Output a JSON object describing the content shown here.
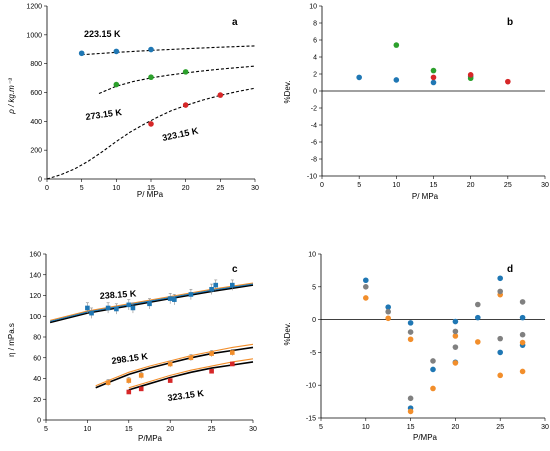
{
  "chart_data": [
    {
      "id": "a",
      "type": "scatter",
      "panel_label": "a",
      "xlabel": "P/ MPa",
      "ylabel": "ρ / kg.m⁻³",
      "xlim": [
        0,
        30
      ],
      "ylim": [
        0,
        1200
      ],
      "xticks": [
        0,
        5,
        10,
        15,
        20,
        25,
        30
      ],
      "yticks": [
        0,
        200,
        400,
        600,
        800,
        1000,
        1200
      ],
      "grid": false,
      "series": [
        {
          "color": "#1f77b4",
          "points": [
            [
              5,
              872
            ],
            [
              10,
              885
            ],
            [
              15,
              898
            ]
          ]
        },
        {
          "color": "#2ca02c",
          "points": [
            [
              10,
              655
            ],
            [
              15,
              706
            ],
            [
              20,
              743
            ]
          ]
        },
        {
          "color": "#d62728",
          "points": [
            [
              15,
              382
            ],
            [
              20,
              513
            ],
            [
              25,
              582
            ]
          ]
        }
      ],
      "curves": [
        {
          "label": "223.15 K",
          "points": [
            [
              5,
              862
            ],
            [
              10,
              878
            ],
            [
              15,
              892
            ],
            [
              20,
              904
            ],
            [
              25,
              914
            ],
            [
              30,
              923
            ]
          ]
        },
        {
          "label": "273.15 K",
          "points": [
            [
              7.5,
              593
            ],
            [
              10,
              644
            ],
            [
              12.5,
              677
            ],
            [
              15,
              701
            ],
            [
              17.5,
              720
            ],
            [
              20,
              736
            ],
            [
              22.5,
              750
            ],
            [
              25,
              762
            ],
            [
              27.5,
              773
            ],
            [
              30,
              783
            ]
          ]
        },
        {
          "label": "323.15 K",
          "points": [
            [
              0,
              0
            ],
            [
              2,
              30
            ],
            [
              4,
              70
            ],
            [
              6,
              125
            ],
            [
              8,
              190
            ],
            [
              10,
              260
            ],
            [
              12,
              325
            ],
            [
              14,
              380
            ],
            [
              16,
              430
            ],
            [
              18,
              475
            ],
            [
              20,
              510
            ],
            [
              22.5,
              548
            ],
            [
              25,
              580
            ],
            [
              27.5,
              607
            ],
            [
              30,
              630
            ]
          ]
        }
      ]
    },
    {
      "id": "b",
      "type": "scatter",
      "panel_label": "b",
      "xlabel": "P/ MPa",
      "ylabel": "%Dev.",
      "xlim": [
        0,
        30
      ],
      "ylim": [
        -10,
        10
      ],
      "xticks": [
        0,
        5,
        10,
        15,
        20,
        25,
        30
      ],
      "yticks": [
        -10,
        -8,
        -6,
        -4,
        -2,
        0,
        2,
        4,
        6,
        8,
        10
      ],
      "zero_line": true,
      "grid": false,
      "series": [
        {
          "color": "#1f77b4",
          "points": [
            [
              5,
              1.6
            ],
            [
              10,
              1.3
            ],
            [
              15,
              1.0
            ],
            [
              20,
              1.7
            ]
          ]
        },
        {
          "color": "#2ca02c",
          "points": [
            [
              10,
              5.4
            ],
            [
              15,
              2.4
            ],
            [
              20,
              1.5
            ]
          ]
        },
        {
          "color": "#d62728",
          "points": [
            [
              15,
              1.6
            ],
            [
              20,
              1.9
            ],
            [
              25,
              1.1
            ]
          ]
        }
      ]
    },
    {
      "id": "c",
      "type": "scatter",
      "panel_label": "c",
      "xlabel": "P/MPa",
      "ylabel": "η / mPa.s",
      "xlim": [
        5,
        30
      ],
      "ylim": [
        0,
        160
      ],
      "xticks": [
        5,
        10,
        15,
        20,
        25,
        30
      ],
      "yticks": [
        0,
        20,
        40,
        60,
        80,
        100,
        120,
        140,
        160
      ],
      "grid": false,
      "series": [
        {
          "color": "#1f77b4",
          "points": [
            [
              10,
              108
            ],
            [
              10.5,
              103
            ],
            [
              12.5,
              108
            ],
            [
              13.5,
              107
            ],
            [
              15,
              111
            ],
            [
              15.5,
              108
            ],
            [
              17.5,
              112
            ],
            [
              20,
              117
            ],
            [
              20.5,
              116
            ],
            [
              22.5,
              121
            ],
            [
              25,
              126
            ],
            [
              25.5,
              130
            ],
            [
              27.5,
              130
            ]
          ],
          "error": 5
        },
        {
          "color": "#f28e2b",
          "points": [
            [
              12.5,
              36
            ],
            [
              15,
              38
            ],
            [
              16.5,
              43
            ],
            [
              20,
              54
            ],
            [
              22.5,
              60
            ],
            [
              25,
              64
            ],
            [
              27.5,
              65
            ]
          ],
          "error": 3
        },
        {
          "color": "#d62728",
          "points": [
            [
              15,
              27
            ],
            [
              16.5,
              30
            ],
            [
              20,
              38
            ],
            [
              25,
              47
            ],
            [
              27.5,
              54
            ]
          ]
        }
      ],
      "curves": [
        {
          "label": "238.15 K",
          "color": "#000000",
          "points": [
            [
              5.5,
              94
            ],
            [
              10,
              103
            ],
            [
              15,
              110
            ],
            [
              20,
              117
            ],
            [
              25,
              124
            ],
            [
              30,
              130
            ]
          ]
        },
        {
          "label": "",
          "color": "#f28e2b",
          "points": [
            [
              5.5,
              96
            ],
            [
              10,
              105
            ],
            [
              15,
              112
            ],
            [
              20,
              119
            ],
            [
              25,
              126
            ],
            [
              30,
              132
            ]
          ]
        },
        {
          "label": "",
          "color": "#1f77b4",
          "points": [
            [
              5.5,
              95
            ],
            [
              10,
              104
            ],
            [
              15,
              111
            ],
            [
              20,
              118
            ],
            [
              25,
              125
            ],
            [
              30,
              131
            ]
          ]
        },
        {
          "label": "298.15 K",
          "color": "#000000",
          "points": [
            [
              11,
              31
            ],
            [
              12.5,
              36
            ],
            [
              15,
              44
            ],
            [
              17.5,
              50
            ],
            [
              20,
              55
            ],
            [
              22.5,
              60
            ],
            [
              25,
              64
            ],
            [
              27.5,
              67
            ],
            [
              30,
              70
            ]
          ]
        },
        {
          "label": "",
          "color": "#f28e2b",
          "points": [
            [
              11,
              33
            ],
            [
              12.5,
              38
            ],
            [
              15,
              46
            ],
            [
              17.5,
              52
            ],
            [
              20,
              57
            ],
            [
              22.5,
              62
            ],
            [
              25,
              66
            ],
            [
              27.5,
              70
            ],
            [
              30,
              73
            ]
          ]
        },
        {
          "label": "323.15 K",
          "color": "#000000",
          "points": [
            [
              15,
              29
            ],
            [
              17.5,
              35
            ],
            [
              20,
              41
            ],
            [
              22.5,
              46
            ],
            [
              25,
              50
            ],
            [
              27.5,
              53
            ],
            [
              30,
              56
            ]
          ]
        },
        {
          "label": "",
          "color": "#f28e2b",
          "points": [
            [
              15,
              31
            ],
            [
              17.5,
              37
            ],
            [
              20,
              43
            ],
            [
              22.5,
              48
            ],
            [
              25,
              52
            ],
            [
              27.5,
              56
            ],
            [
              30,
              59
            ]
          ]
        }
      ]
    },
    {
      "id": "d",
      "type": "scatter",
      "panel_label": "d",
      "xlabel": "P/MPa",
      "ylabel": "%Dev.",
      "xlim": [
        5,
        30
      ],
      "ylim": [
        -15,
        10
      ],
      "xticks": [
        5,
        10,
        15,
        20,
        25,
        30
      ],
      "yticks": [
        -15,
        -10,
        -5,
        0,
        5,
        10
      ],
      "zero_line": true,
      "grid": false,
      "series": [
        {
          "color": "#1f77b4",
          "points": [
            [
              10,
              6.0
            ],
            [
              12.5,
              1.9
            ],
            [
              15,
              -0.5
            ],
            [
              15,
              -13.5
            ],
            [
              17.5,
              -7.6
            ],
            [
              20,
              -0.3
            ],
            [
              20,
              -6.5
            ],
            [
              22.5,
              0.3
            ],
            [
              25,
              6.3
            ],
            [
              25,
              -5.0
            ],
            [
              27.5,
              0.3
            ],
            [
              27.5,
              -3.9
            ]
          ]
        },
        {
          "color": "#f28e2b",
          "points": [
            [
              10,
              3.3
            ],
            [
              12.5,
              0.2
            ],
            [
              15,
              -3.0
            ],
            [
              15,
              -14.0
            ],
            [
              17.5,
              -10.5
            ],
            [
              20,
              -2.5
            ],
            [
              20,
              -6.6
            ],
            [
              22.5,
              -3.4
            ],
            [
              25,
              3.8
            ],
            [
              25,
              -8.5
            ],
            [
              27.5,
              -3.5
            ],
            [
              27.5,
              -7.9
            ]
          ]
        },
        {
          "color": "#808080",
          "points": [
            [
              10,
              5.0
            ],
            [
              12.5,
              1.2
            ],
            [
              15,
              -1.9
            ],
            [
              15,
              -12.0
            ],
            [
              17.5,
              -6.3
            ],
            [
              20,
              -1.8
            ],
            [
              20,
              -4.2
            ],
            [
              22.5,
              2.3
            ],
            [
              25,
              4.3
            ],
            [
              25,
              -2.9
            ],
            [
              27.5,
              2.7
            ],
            [
              27.5,
              -2.3
            ]
          ]
        }
      ]
    }
  ],
  "curve_labels": {
    "a": [
      "223.15 K",
      "273.15 K",
      "323.15 K"
    ],
    "c": [
      "238.15 K",
      "298.15 K",
      "323.15 K"
    ]
  }
}
